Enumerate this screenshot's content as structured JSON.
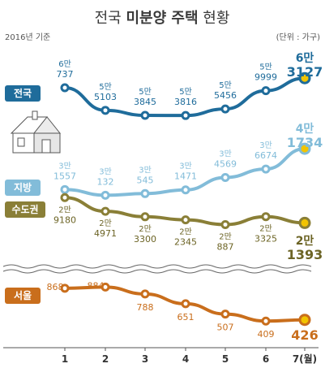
{
  "title": {
    "prefix": "전국 ",
    "highlight": "미분양 주택",
    "suffix": " 현황"
  },
  "meta": {
    "year_note": "2016년 기준",
    "unit_note": "(단위 : 가구)"
  },
  "colors": {
    "national": "#1f6c9b",
    "provinces": "#82bcd9",
    "capital": "#8a7f37",
    "seoul": "#c96e1c",
    "text": "#333333",
    "grid": "#b8b8b8"
  },
  "chart_data": {
    "type": "line",
    "categories": [
      "1",
      "2",
      "3",
      "4",
      "5",
      "6",
      "7(월)"
    ],
    "series": [
      {
        "key": "national",
        "name": "전국",
        "values": [
          60737,
          55103,
          53845,
          53816,
          55456,
          59999,
          63127
        ],
        "labels_top": [
          "6만",
          "5만",
          "5만",
          "5만",
          "5만",
          "5만",
          "6만"
        ],
        "labels_bottom": [
          "737",
          "5103",
          "3845",
          "3816",
          "5456",
          "9999",
          "3127"
        ]
      },
      {
        "key": "provinces",
        "name": "지방",
        "values": [
          31557,
          30132,
          30545,
          31471,
          34569,
          36674,
          41734
        ],
        "labels_top": [
          "3만",
          "3만",
          "3만",
          "3만",
          "3만",
          "3만",
          "4만"
        ],
        "labels_bottom": [
          "1557",
          "132",
          "545",
          "1471",
          "4569",
          "6674",
          "1734"
        ]
      },
      {
        "key": "capital",
        "name": "수도권",
        "values": [
          29180,
          24971,
          23300,
          22345,
          20887,
          23325,
          21393
        ],
        "labels_top": [
          "2만",
          "2만",
          "2만",
          "2만",
          "2만",
          "2만",
          "2만"
        ],
        "labels_bottom": [
          "9180",
          "4971",
          "3300",
          "2345",
          "887",
          "3325",
          "1393"
        ]
      },
      {
        "key": "seoul",
        "name": "서울",
        "values": [
          868,
          884,
          788,
          651,
          507,
          409,
          426
        ],
        "labels_top": [
          "",
          "",
          "",
          "",
          "",
          "",
          ""
        ],
        "labels_bottom": [
          "868",
          "884",
          "788",
          "651",
          "507",
          "409",
          "426"
        ]
      }
    ],
    "axis_break": true,
    "grid": false,
    "legend": "left"
  }
}
